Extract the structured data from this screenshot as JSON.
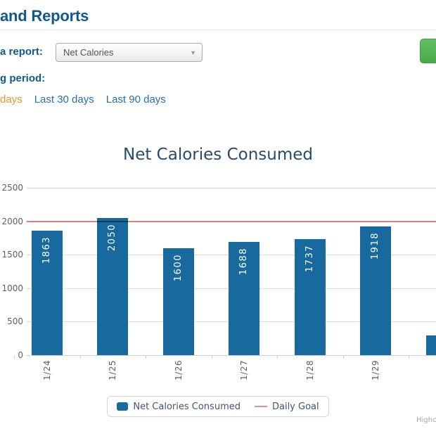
{
  "header": {
    "title": "and Reports"
  },
  "controls": {
    "report_label": "a report:",
    "report_dropdown_value": "Net Calories",
    "period_label": "g period:",
    "period_links": [
      {
        "label": "days",
        "active": true
      },
      {
        "label": "Last 30 days",
        "active": false
      },
      {
        "label": "Last 90 days",
        "active": false
      }
    ]
  },
  "chart_data": {
    "type": "bar",
    "title": "Net Calories Consumed",
    "categories": [
      "1/24",
      "1/25",
      "1/26",
      "1/27",
      "1/28",
      "1/29",
      ""
    ],
    "series": [
      {
        "name": "Net Calories Consumed",
        "type": "bar",
        "values": [
          1863,
          2050,
          1600,
          1688,
          1737,
          1918,
          295
        ]
      },
      {
        "name": "Daily Goal",
        "type": "line",
        "value": 2000
      }
    ],
    "ylim": [
      0,
      2500
    ],
    "yticks": [
      0,
      500,
      1000,
      1500,
      2000,
      2500
    ],
    "grid": true,
    "legend_position": "bottom",
    "bar_color": "#17699E",
    "goal_line_color": "#ED8C86",
    "credits": "Highcharts.com"
  },
  "colors": {
    "header_text": "#12588A",
    "link_blue": "#2470A8",
    "link_active_orange": "#E8952F",
    "title_navy": "#274B6D",
    "axis_label_gray": "#606060",
    "button_green": "#4AA84A"
  }
}
